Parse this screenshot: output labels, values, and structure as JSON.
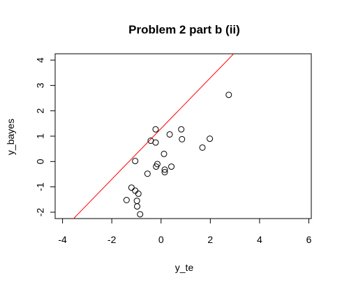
{
  "chart_data": {
    "type": "scatter",
    "title": "Problem 2 part b (ii)",
    "xlabel": "y_te",
    "ylabel": "y_bayes",
    "xlim": [
      -4.3,
      6.1
    ],
    "ylim": [
      -2.25,
      4.25
    ],
    "xticks": [
      -4,
      -2,
      0,
      2,
      4,
      6
    ],
    "yticks": [
      -2,
      -1,
      0,
      1,
      2,
      3,
      4
    ],
    "grid": false,
    "point_style": "open-circle",
    "point_color": "#000000",
    "line_color": "#ff0000",
    "reference_line": {
      "intercept": 1.3,
      "slope": 1.0
    },
    "points": [
      {
        "x": 2.75,
        "y": 2.63
      },
      {
        "x": 1.98,
        "y": 0.9
      },
      {
        "x": 1.68,
        "y": 0.55
      },
      {
        "x": 0.82,
        "y": 1.27
      },
      {
        "x": 0.85,
        "y": 0.88
      },
      {
        "x": 0.35,
        "y": 1.07
      },
      {
        "x": 0.42,
        "y": -0.2
      },
      {
        "x": 0.12,
        "y": 0.3
      },
      {
        "x": 0.15,
        "y": -0.32
      },
      {
        "x": 0.15,
        "y": -0.42
      },
      {
        "x": -0.22,
        "y": 1.27
      },
      {
        "x": -0.22,
        "y": 0.75
      },
      {
        "x": -0.42,
        "y": 0.82
      },
      {
        "x": -0.15,
        "y": -0.1
      },
      {
        "x": -0.2,
        "y": -0.2
      },
      {
        "x": -0.55,
        "y": -0.48
      },
      {
        "x": -1.05,
        "y": 0.02
      },
      {
        "x": -1.2,
        "y": -1.03
      },
      {
        "x": -1.05,
        "y": -1.15
      },
      {
        "x": -0.92,
        "y": -1.27
      },
      {
        "x": -1.4,
        "y": -1.52
      },
      {
        "x": -0.98,
        "y": -1.55
      },
      {
        "x": -0.97,
        "y": -1.77
      },
      {
        "x": -0.85,
        "y": -2.08
      }
    ]
  }
}
